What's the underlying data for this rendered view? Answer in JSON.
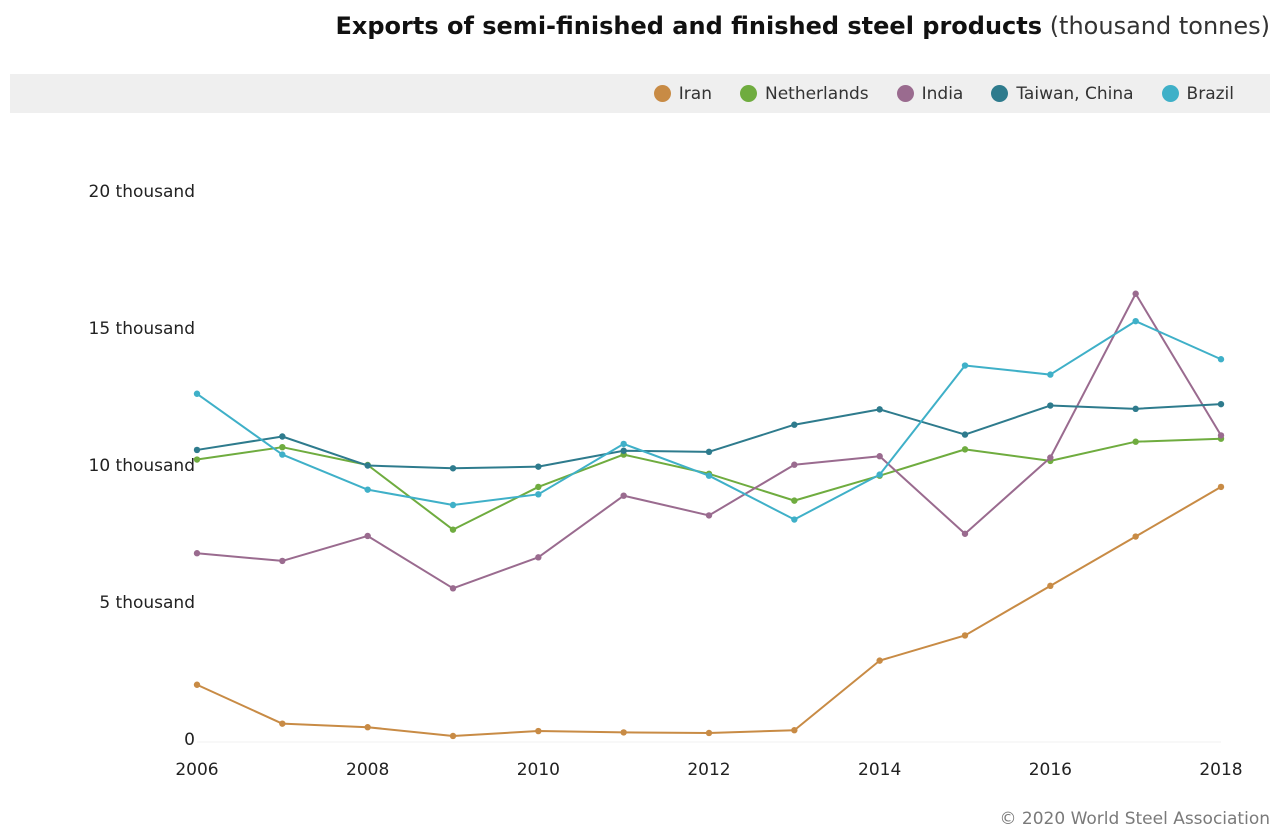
{
  "title": {
    "main": "Exports of semi-finished and finished steel products",
    "unit": "(thousand tonnes)"
  },
  "footer": "© 2020 World Steel Association",
  "colors": {
    "Iran": "#c88b45",
    "Netherlands": "#6fac3f",
    "India": "#9a6b8f",
    "Taiwan, China": "#2e7b8d",
    "Brazil": "#3fb0c8"
  },
  "chart_data": {
    "type": "line",
    "title": "Exports of semi-finished and finished steel products (thousand tonnes)",
    "x": [
      2006,
      2007,
      2008,
      2009,
      2010,
      2011,
      2012,
      2013,
      2014,
      2015,
      2016,
      2017,
      2018
    ],
    "x_ticks": [
      "2006",
      "2008",
      "2010",
      "2012",
      "2014",
      "2016",
      "2018"
    ],
    "y_ticks": [
      {
        "value": 0,
        "label": "0"
      },
      {
        "value": 5000,
        "label": "5 thousand"
      },
      {
        "value": 10000,
        "label": "10 thousand"
      },
      {
        "value": 15000,
        "label": "15 thousand"
      },
      {
        "value": 20000,
        "label": "20 thousand"
      }
    ],
    "xlim": [
      2006,
      2018
    ],
    "ylim": [
      0,
      20000
    ],
    "grid": false,
    "legend_position": "top-right",
    "series": [
      {
        "name": "Iran",
        "values": [
          1980,
          560,
          430,
          110,
          290,
          240,
          220,
          320,
          2860,
          3780,
          5590,
          7390,
          9200
        ]
      },
      {
        "name": "Netherlands",
        "values": [
          10200,
          10650,
          10000,
          7640,
          9200,
          10380,
          9680,
          8700,
          9610,
          10570,
          10150,
          10850,
          10960
        ]
      },
      {
        "name": "India",
        "values": [
          6780,
          6500,
          7410,
          5500,
          6630,
          8880,
          8160,
          10010,
          10320,
          7490,
          10270,
          16250,
          11080
        ]
      },
      {
        "name": "Taiwan, China",
        "values": [
          10550,
          11040,
          9980,
          9880,
          9940,
          10520,
          10480,
          11470,
          12030,
          11110,
          12170,
          12050,
          12220
        ]
      },
      {
        "name": "Brazil",
        "values": [
          12600,
          10380,
          9100,
          8540,
          8930,
          10770,
          9610,
          8010,
          9650,
          13630,
          13300,
          15250,
          13860
        ]
      }
    ]
  }
}
